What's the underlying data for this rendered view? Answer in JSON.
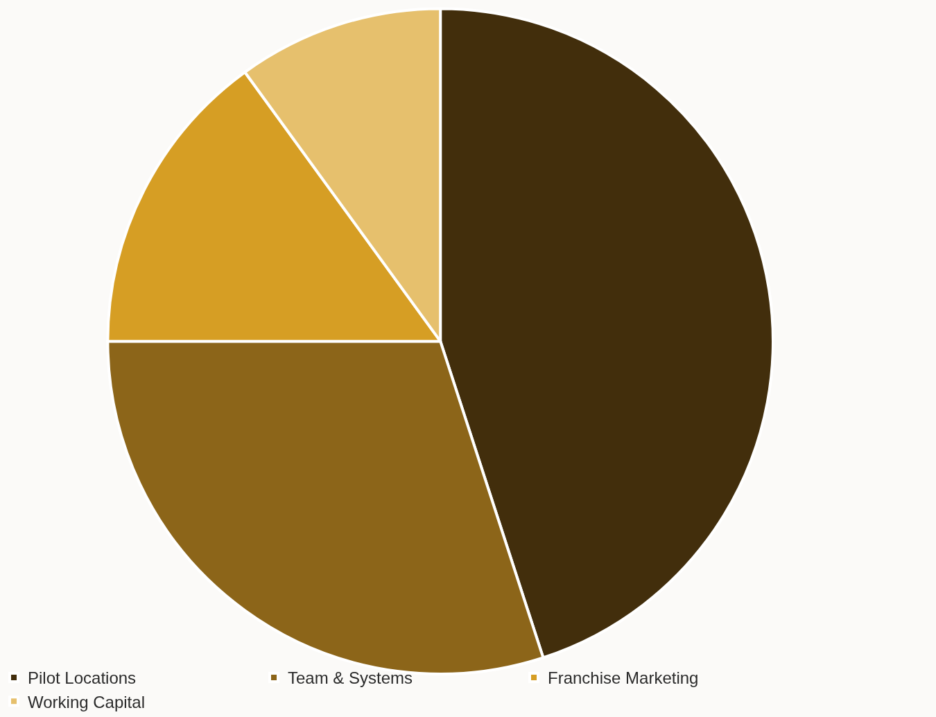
{
  "chart_data": {
    "type": "pie",
    "categories": [
      "Pilot Locations",
      "Team & Systems",
      "Franchise Marketing",
      "Working Capital"
    ],
    "values": [
      45,
      30,
      15,
      10
    ],
    "colors": [
      "#422e0c",
      "#8c6519",
      "#d69e24",
      "#e6c06d"
    ],
    "legend": "bottom"
  }
}
